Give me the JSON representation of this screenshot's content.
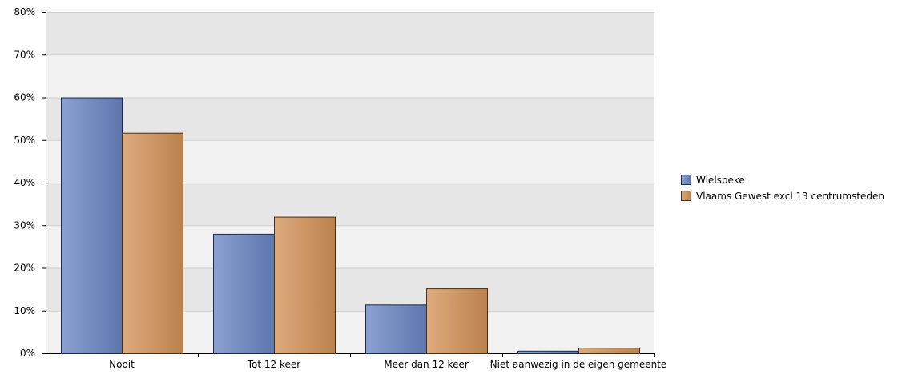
{
  "chart_data": {
    "type": "bar",
    "categories": [
      "Nooit",
      "Tot 12 keer",
      "Meer dan 12 keer",
      "Niet aanwezig in de eigen gemeente"
    ],
    "series": [
      {
        "name": "Wielsbeke",
        "values": [
          60.0,
          28.0,
          11.4,
          0.6
        ],
        "color": "#6a86c4",
        "border": "#1f2b46"
      },
      {
        "name": "Vlaams Gewest excl 13 centrumsteden",
        "values": [
          51.7,
          32.0,
          15.2,
          1.3
        ],
        "color": "#d49358",
        "border": "#4a2f16"
      }
    ],
    "title": "",
    "xlabel": "",
    "ylabel": "",
    "ylim": [
      0,
      80
    ],
    "yticks": [
      0,
      10,
      20,
      30,
      40,
      50,
      60,
      70,
      80
    ],
    "ytick_labels": [
      "0%",
      "10%",
      "20%",
      "30%",
      "40%",
      "50%",
      "60%",
      "70%",
      "80%"
    ],
    "grid": true,
    "legend_position": "right",
    "band_colors": [
      "#e6e6e6",
      "#f2f2f2"
    ]
  }
}
